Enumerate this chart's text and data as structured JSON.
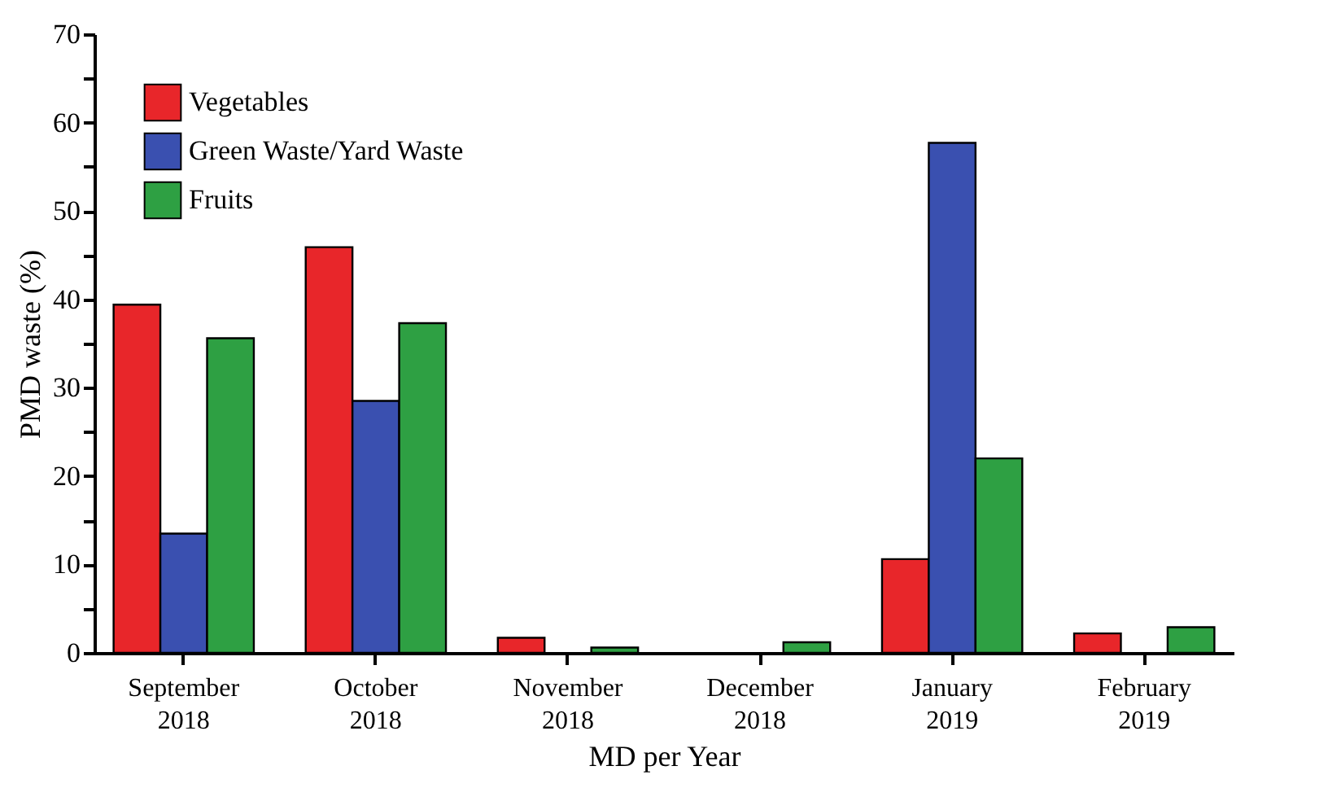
{
  "chart_data": {
    "type": "bar",
    "xlabel": "MD per Year",
    "ylabel": "PMD waste (%)",
    "categories": [
      "September\n2018",
      "October\n2018",
      "November\n2018",
      "December\n2018",
      "January\n2019",
      "February\n2019"
    ],
    "series": [
      {
        "name": "Vegetables",
        "color": "#e8262a",
        "values": [
          39.4,
          45.9,
          1.7,
          null,
          10.6,
          2.2
        ]
      },
      {
        "name": "Green Waste/Yard Waste",
        "color": "#3a50b0",
        "values": [
          13.5,
          28.5,
          null,
          null,
          57.7,
          null
        ]
      },
      {
        "name": "Fruits",
        "color": "#2ea043",
        "values": [
          35.6,
          37.3,
          0.6,
          1.2,
          22.0,
          2.9
        ]
      }
    ],
    "ylim": [
      0,
      70
    ],
    "yticks": [
      0,
      {
        "value": 5,
        "label": null
      },
      10,
      {
        "value": 15,
        "label": null
      },
      20,
      {
        "value": 25,
        "label": null
      },
      30,
      {
        "value": 35,
        "label": null
      },
      40,
      {
        "value": 45,
        "label": null
      },
      50,
      {
        "value": 55,
        "label": null
      },
      60,
      {
        "value": 65,
        "label": null
      },
      70
    ],
    "grid": false,
    "legend": "top left"
  }
}
